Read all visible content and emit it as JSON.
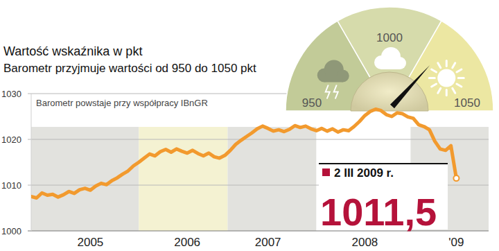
{
  "chart_data": [
    {
      "type": "line",
      "title": "Wartość wskaźnika w pkt",
      "subtitle": "Barometr przyjmuje wartości od 950 do 1050 pkt",
      "annotations": [
        "Barometr powstaje przy współpracy IBnGR",
        "2 III 2009 r.",
        "1011,5"
      ],
      "categories": [
        null,
        null,
        null,
        null,
        null,
        null,
        null,
        null,
        null,
        null,
        null,
        "2005",
        null,
        null,
        null,
        null,
        null,
        null,
        null,
        null,
        null,
        null,
        null,
        null,
        null,
        null,
        null,
        null,
        null,
        "2006",
        null,
        null,
        null,
        null,
        null,
        null,
        null,
        null,
        null,
        null,
        null,
        null,
        null,
        null,
        "2007",
        null,
        null,
        null,
        null,
        null,
        null,
        null,
        null,
        null,
        null,
        null,
        null,
        null,
        null,
        null,
        null,
        null,
        "2008",
        null,
        null,
        null,
        null,
        null,
        null,
        null,
        null,
        null,
        null,
        null,
        null,
        null,
        null,
        null,
        null,
        "'09"
      ],
      "values": [
        1007.5,
        1007.2,
        1008.3,
        1007.8,
        1008.0,
        1007.4,
        1007.9,
        1008.6,
        1008.2,
        1009.0,
        1009.3,
        1008.9,
        1009.8,
        1010.4,
        1010.1,
        1011.0,
        1011.6,
        1012.4,
        1013.1,
        1014.2,
        1015.0,
        1015.9,
        1016.8,
        1016.4,
        1017.3,
        1017.8,
        1017.2,
        1017.9,
        1017.4,
        1017.0,
        1017.6,
        1016.9,
        1016.4,
        1017.0,
        1016.2,
        1015.9,
        1016.5,
        1017.6,
        1018.9,
        1019.8,
        1020.6,
        1021.4,
        1022.3,
        1022.9,
        1022.4,
        1021.8,
        1022.1,
        1021.7,
        1022.2,
        1023.0,
        1022.6,
        1022.9,
        1022.3,
        1021.9,
        1022.4,
        1021.8,
        1022.3,
        1021.6,
        1022.1,
        1021.9,
        1022.8,
        1023.9,
        1025.2,
        1026.1,
        1026.6,
        1026.3,
        1025.4,
        1025.0,
        1025.8,
        1025.6,
        1024.9,
        1024.6,
        1023.2,
        1022.8,
        1022.1,
        1019.6,
        1017.9,
        1017.6,
        1018.6,
        1011.5
      ],
      "color": "#f29a2e",
      "ylim": [
        1000,
        1030
      ],
      "yticks": [
        1000,
        1010,
        1020,
        1030
      ],
      "grid": true
    },
    {
      "type": "gauge",
      "ylim": [
        950,
        1050
      ],
      "yticks": [
        950,
        1000,
        1050
      ],
      "values": [
        1023
      ]
    }
  ]
}
